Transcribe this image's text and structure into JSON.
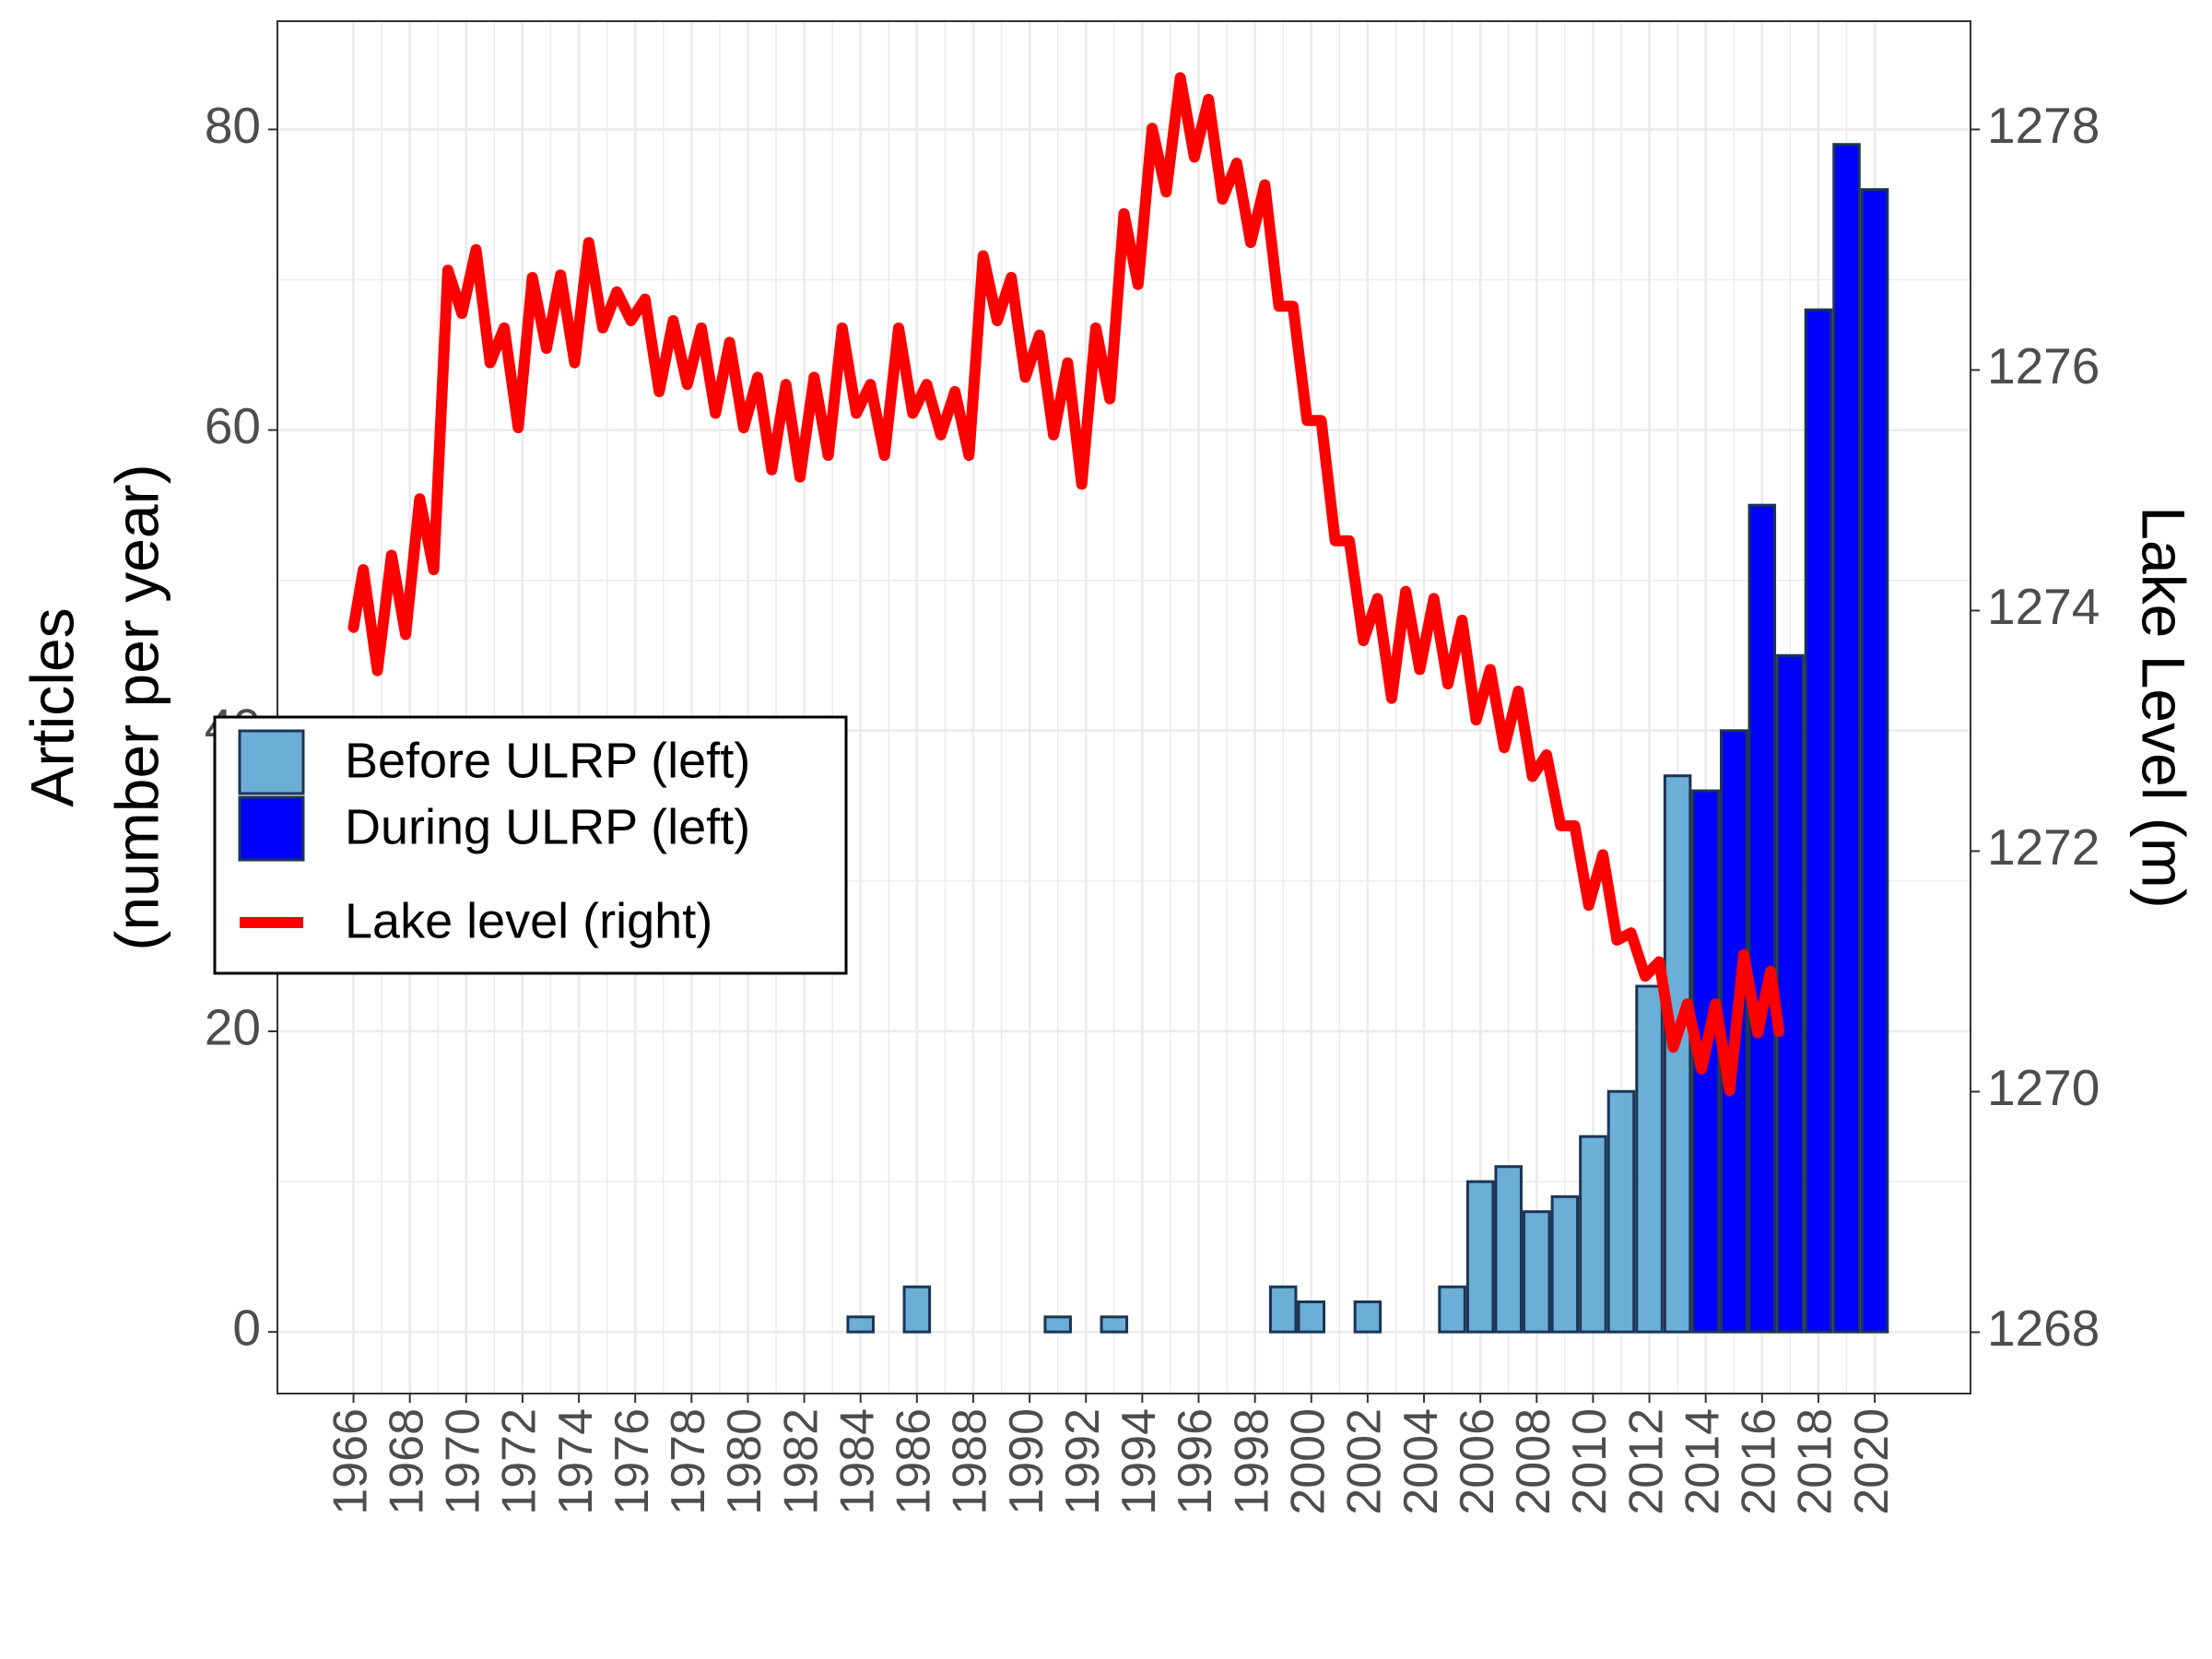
{
  "chart_data": {
    "type": "bar",
    "ylabel": [
      "Articles",
      "(number per year)"
    ],
    "y2label": "Lake Level (m)",
    "xlim": [
      1963.3,
      2023.4
    ],
    "xticks": [
      1966,
      1968,
      1970,
      1972,
      1974,
      1976,
      1978,
      1980,
      1982,
      1984,
      1986,
      1988,
      1990,
      1992,
      1994,
      1996,
      1998,
      2000,
      2002,
      2004,
      2006,
      2008,
      2010,
      2012,
      2014,
      2016,
      2018,
      2020
    ],
    "ylim": [
      -4.1,
      87.2
    ],
    "yticks": [
      0,
      20,
      40,
      60,
      80
    ],
    "y2lim": [
      1267.49,
      1278.9
    ],
    "y2ticks": [
      1268,
      1270,
      1272,
      1274,
      1276,
      1278
    ],
    "grid": true,
    "legend": "left",
    "series": [
      {
        "name": "Before ULRP (left)",
        "color": "#6baed6",
        "x": [
          1984,
          1986,
          1991,
          1993,
          1999,
          2000,
          2002,
          2005,
          2006,
          2007,
          2008,
          2009,
          2010,
          2011,
          2012,
          2013
        ],
        "values": [
          1,
          3,
          1,
          1,
          3,
          2,
          2,
          3,
          10,
          11,
          8,
          9,
          13,
          16,
          23,
          37
        ]
      },
      {
        "name": "During ULRP (left)",
        "color": "#0000ff",
        "x": [
          2014,
          2015,
          2016,
          2017,
          2018,
          2019,
          2020
        ],
        "values": [
          36,
          40,
          55,
          45,
          68,
          79,
          76
        ]
      },
      {
        "name": "Lake level (right)",
        "type": "line",
        "axis": "y2",
        "color": "#ff0000",
        "x": [
          1966.0,
          1966.35,
          1966.85,
          1967.35,
          1967.85,
          1968.35,
          1968.85,
          1969.35,
          1969.85,
          1970.35,
          1970.85,
          1971.35,
          1971.85,
          1972.35,
          1972.85,
          1973.35,
          1973.85,
          1974.35,
          1974.85,
          1975.35,
          1975.85,
          1976.35,
          1976.85,
          1977.35,
          1977.85,
          1978.35,
          1978.85,
          1979.35,
          1979.85,
          1980.35,
          1980.85,
          1981.35,
          1981.85,
          1982.35,
          1982.85,
          1983.35,
          1983.85,
          1984.35,
          1984.85,
          1985.35,
          1985.85,
          1986.35,
          1986.85,
          1987.35,
          1987.85,
          1988.35,
          1988.85,
          1989.35,
          1989.85,
          1990.35,
          1990.85,
          1991.35,
          1991.85,
          1992.35,
          1992.85,
          1993.35,
          1993.85,
          1994.35,
          1994.85,
          1995.35,
          1995.85,
          1996.35,
          1996.85,
          1997.35,
          1997.85,
          1998.35,
          1998.85,
          1999.35,
          1999.85,
          2000.35,
          2000.85,
          2001.35,
          2001.85,
          2002.35,
          2002.85,
          2003.35,
          2003.85,
          2004.35,
          2004.85,
          2005.35,
          2005.85,
          2006.35,
          2006.85,
          2007.35,
          2007.85,
          2008.35,
          2008.85,
          2009.35,
          2009.85,
          2010.35,
          2010.85,
          2011.35,
          2011.85,
          2012.35,
          2012.85,
          2013.35,
          2013.85,
          2014.35,
          2014.85,
          2015.35,
          2015.85,
          2016.3,
          2016.6
        ],
        "values": [
          1273.86,
          1274.34,
          1273.5,
          1274.46,
          1273.8,
          1274.93,
          1274.34,
          1276.83,
          1276.47,
          1277.0,
          1276.06,
          1276.35,
          1275.52,
          1276.77,
          1276.18,
          1276.79,
          1276.06,
          1277.06,
          1276.35,
          1276.65,
          1276.41,
          1276.59,
          1275.82,
          1276.41,
          1275.88,
          1276.35,
          1275.64,
          1276.23,
          1275.52,
          1275.94,
          1275.17,
          1275.88,
          1275.11,
          1275.94,
          1275.29,
          1276.35,
          1275.64,
          1275.88,
          1275.29,
          1276.35,
          1275.64,
          1275.88,
          1275.46,
          1275.82,
          1275.29,
          1276.95,
          1276.41,
          1276.77,
          1275.94,
          1276.29,
          1275.46,
          1276.06,
          1275.05,
          1276.35,
          1275.76,
          1277.3,
          1276.71,
          1278.01,
          1277.48,
          1278.43,
          1277.77,
          1278.25,
          1277.42,
          1277.72,
          1277.06,
          1277.54,
          1276.53,
          1276.53,
          1275.58,
          1275.58,
          1274.58,
          1274.58,
          1273.75,
          1274.1,
          1273.27,
          1274.16,
          1273.51,
          1274.1,
          1273.39,
          1273.92,
          1273.09,
          1273.51,
          1272.86,
          1273.33,
          1272.62,
          1272.8,
          1272.21,
          1272.21,
          1271.55,
          1271.97,
          1271.26,
          1271.32,
          1270.96,
          1271.08,
          1270.37,
          1270.73,
          1270.19,
          1270.73,
          1270.01,
          1271.14,
          1270.49,
          1271.0,
          1270.5
        ]
      }
    ]
  }
}
